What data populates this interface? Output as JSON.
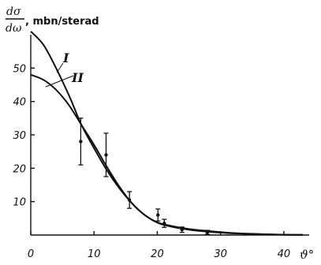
{
  "chart_data": {
    "type": "line",
    "title": "",
    "ylabel": {
      "numerator": "dσ",
      "denominator": "dω",
      "unit": ", mbn/sterad"
    },
    "xlabel": "ϑ°",
    "xlim": [
      0,
      44
    ],
    "ylim": [
      0,
      60
    ],
    "xticks": [
      0,
      10,
      20,
      30,
      40
    ],
    "xtick_labels": [
      "0",
      "10",
      "20",
      "30",
      "40"
    ],
    "yticks": [
      10,
      20,
      30,
      40,
      50
    ],
    "ytick_labels": [
      "10",
      "20",
      "30",
      "40",
      "50"
    ],
    "grid": false,
    "series": [
      {
        "name": "I",
        "x": [
          0,
          2,
          4,
          6,
          7,
          8,
          10,
          12,
          14,
          16,
          18,
          20,
          22,
          25,
          28,
          32,
          36,
          40,
          43
        ],
        "y": [
          61,
          57,
          50,
          42,
          37.5,
          33,
          26,
          19.5,
          14,
          9.5,
          6,
          3.8,
          2.8,
          1.8,
          1.2,
          0.6,
          0.3,
          0.1,
          0.05
        ]
      },
      {
        "name": "II",
        "x": [
          0,
          2,
          4,
          6,
          8,
          10,
          12,
          14,
          16,
          18,
          20,
          22,
          25,
          28,
          32,
          36,
          40,
          43
        ],
        "y": [
          48,
          46.5,
          43.5,
          39,
          33,
          27,
          20.5,
          14.5,
          9.5,
          6,
          3.7,
          2.6,
          1.6,
          1,
          0.5,
          0.25,
          0.1,
          0.05
        ]
      }
    ],
    "measurements": {
      "x": [
        7.9,
        11.9,
        15.6,
        20.1,
        21.1,
        23.9,
        27.9
      ],
      "y": [
        28,
        24,
        10.5,
        6,
        3.5,
        1.6,
        0.8
      ],
      "err": [
        7,
        6.5,
        2.5,
        1.8,
        1.2,
        0.8,
        0.6
      ]
    },
    "curve_labels": [
      "I",
      "II"
    ]
  }
}
